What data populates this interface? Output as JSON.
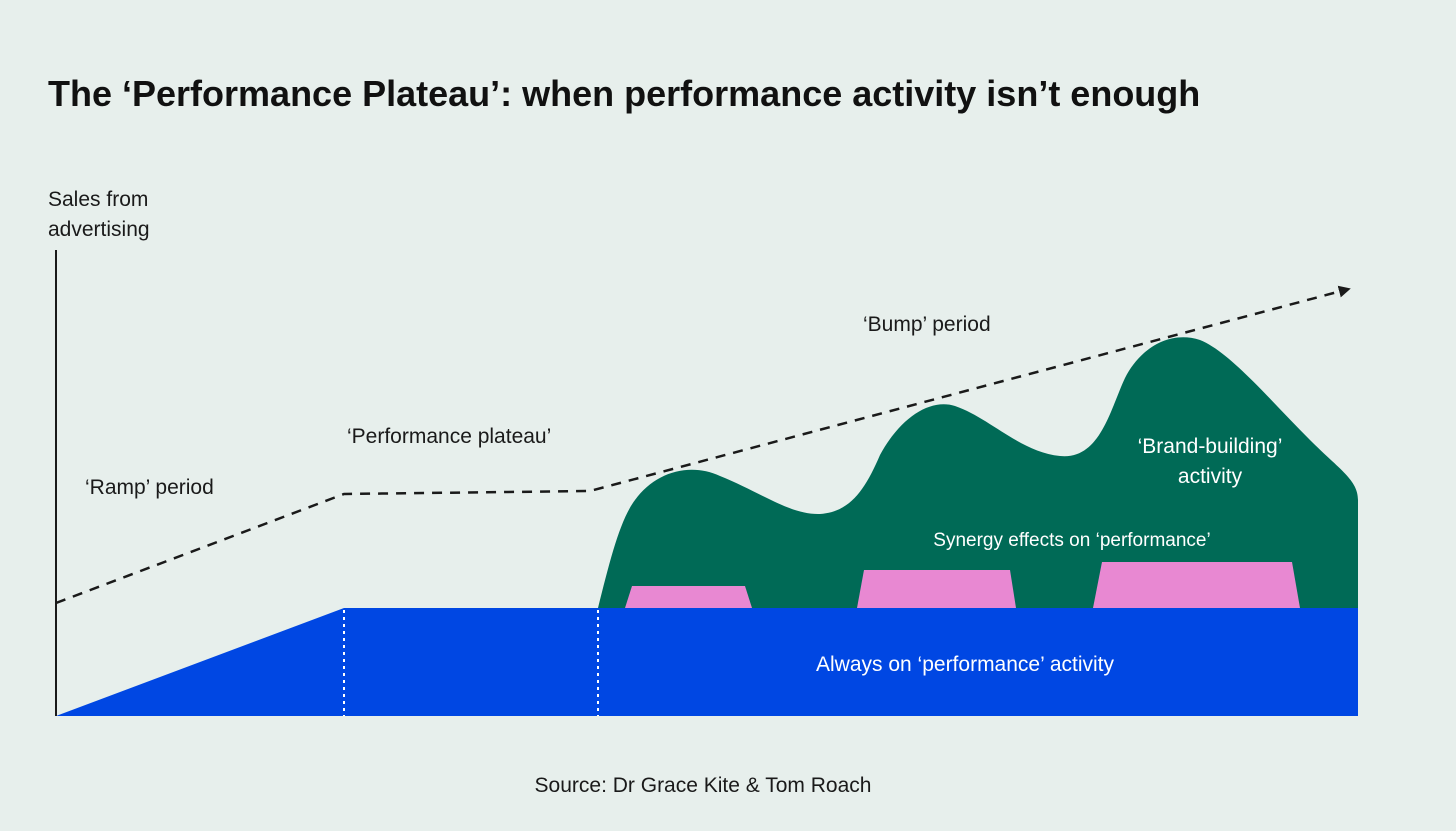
{
  "title": "The ‘Performance Plateau’: when performance activity isn’t enough",
  "y_axis_label": [
    "Sales from",
    "advertising"
  ],
  "periods": {
    "ramp": "‘Ramp’ period",
    "plateau": "‘Performance plateau’",
    "bump": "‘Bump’ period"
  },
  "areas": {
    "brand_building": [
      "‘Brand-building’",
      "activity"
    ],
    "synergy": "Synergy effects on ‘performance’",
    "always_on": "Always on ‘performance’ activity"
  },
  "source": "Source: Dr Grace Kite & Tom Roach",
  "colors": {
    "background": "#e7efec",
    "always_on": "#0047e3",
    "brand_building": "#006a56",
    "synergy": "#e888d2",
    "trend_line": "#1a1a1a"
  }
}
